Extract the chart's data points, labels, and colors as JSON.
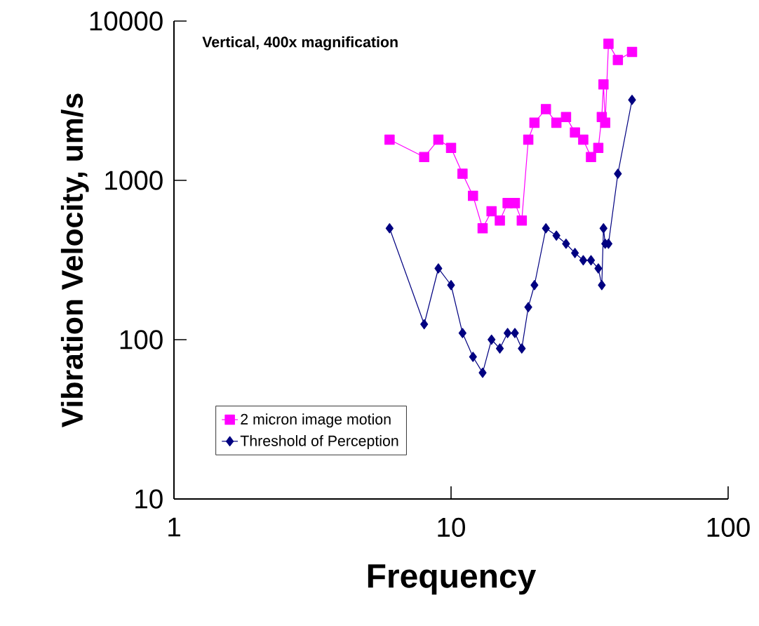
{
  "chart_data": {
    "type": "line",
    "title": "Vertical, 400x magnification",
    "xlabel": "Frequency",
    "ylabel": "Vibration Velocity, um/s",
    "log": "xy",
    "xlim": [
      1,
      100
    ],
    "ylim": [
      10,
      10000
    ],
    "xticks": [
      1,
      10,
      100
    ],
    "yticks": [
      10,
      100,
      1000,
      10000
    ],
    "legend": "bottom left",
    "series": [
      {
        "name": "2 micron image motion",
        "color": "#ff00ff",
        "marker": "square",
        "x": [
          6,
          8,
          9,
          10,
          11,
          12,
          13,
          14,
          15,
          16,
          17,
          18,
          19,
          20,
          22,
          24,
          26,
          28,
          30,
          32,
          34,
          35,
          35.5,
          36,
          37,
          40,
          45
        ],
        "values": [
          1800,
          1400,
          1800,
          1600,
          1100,
          800,
          500,
          640,
          560,
          720,
          720,
          560,
          1800,
          2300,
          2800,
          2300,
          2500,
          2000,
          1800,
          1400,
          1600,
          2500,
          4000,
          2300,
          7200,
          5700,
          6400
        ]
      },
      {
        "name": "Threshold of Perception",
        "color": "#000080",
        "marker": "diamond",
        "x": [
          6,
          8,
          9,
          10,
          11,
          12,
          13,
          14,
          15,
          16,
          17,
          18,
          19,
          20,
          22,
          24,
          26,
          28,
          30,
          32,
          34,
          35,
          35.5,
          36,
          37,
          40,
          45
        ],
        "values": [
          500,
          125,
          280,
          220,
          110,
          78,
          62,
          100,
          88,
          110,
          110,
          88,
          160,
          220,
          500,
          450,
          400,
          350,
          315,
          315,
          280,
          220,
          500,
          400,
          400,
          1100,
          3200
        ]
      }
    ]
  }
}
